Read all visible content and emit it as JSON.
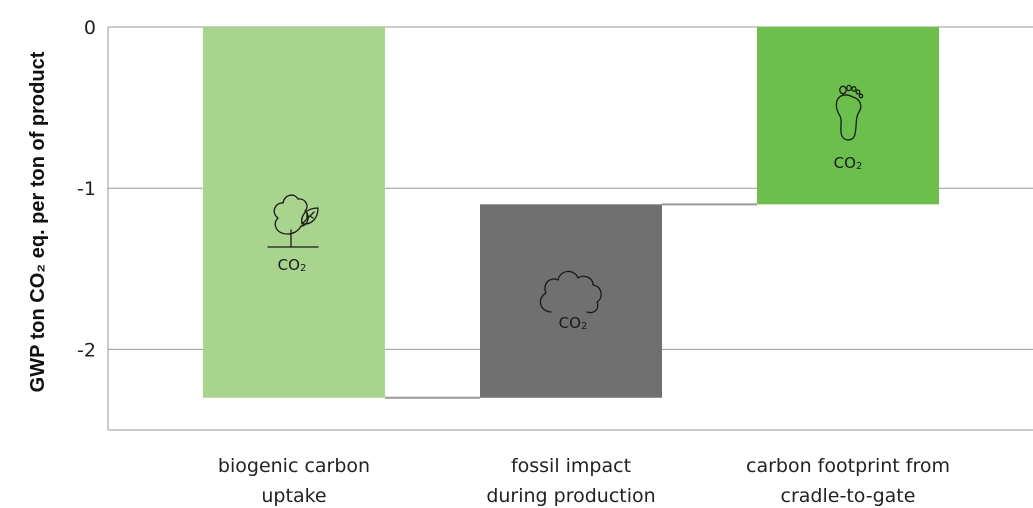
{
  "chart_data": {
    "type": "bar",
    "subtype": "waterfall",
    "ylabel": "GWP ton CO₂ eq. per ton of product",
    "ylim": [
      -2.5,
      0
    ],
    "yticks": [
      0,
      -1,
      -2
    ],
    "ytick_labels": [
      "0",
      "-1",
      "-2"
    ],
    "grid": true,
    "bars": [
      {
        "category_lines": [
          "biogenic carbon",
          "uptake"
        ],
        "start": 0,
        "end": -2.3,
        "color": "#a8d48e",
        "icon": "tree-leaf-icon",
        "icon_label": "CO₂",
        "icon_label_main": "CO",
        "icon_label_sub": "2"
      },
      {
        "category_lines": [
          "fossil impact",
          "during production"
        ],
        "start": -2.3,
        "end": -1.1,
        "color": "#717070",
        "icon": "cloud-icon",
        "icon_label": "CO₂",
        "icon_label_main": "CO",
        "icon_label_sub": "2"
      },
      {
        "category_lines": [
          "carbon footprint from",
          "cradle-to-gate"
        ],
        "start": -1.1,
        "end": 0,
        "color": "#6cbf4c",
        "icon": "footprint-icon",
        "icon_label": "CO₂",
        "icon_label_main": "CO",
        "icon_label_sub": "2"
      }
    ],
    "connector_color": "#999999"
  }
}
